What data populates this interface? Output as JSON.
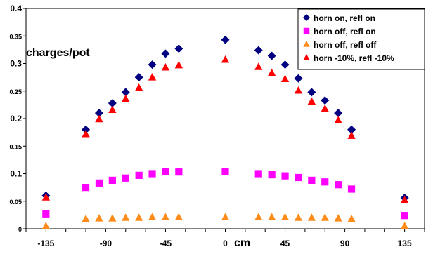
{
  "chart_data": {
    "type": "scatter",
    "title": "",
    "xlabel": "cm",
    "ylabel": "charges/pot",
    "xlim": [
      -150,
      150
    ],
    "ylim": [
      0,
      0.4
    ],
    "x_ticks": [
      -135,
      -90,
      -45,
      0,
      45,
      90,
      135
    ],
    "x_tick_labels": [
      "-135",
      "-90",
      "-45",
      "0",
      "45",
      "90",
      "135"
    ],
    "y_ticks": [
      0,
      0.05,
      0.1,
      0.15,
      0.2,
      0.25,
      0.3,
      0.35,
      0.4
    ],
    "y_tick_labels": [
      "0",
      "0.05",
      "0.1",
      "0.15",
      "0.2",
      "0.25",
      "0.3",
      "0.35",
      "0.4"
    ],
    "legend": {
      "position": "top-right"
    },
    "grid": false,
    "x": [
      -135,
      -105,
      -95,
      -85,
      -75,
      -65,
      -55,
      -45,
      -35,
      -25,
      0,
      25,
      35,
      45,
      55,
      65,
      75,
      85,
      95,
      105,
      135
    ],
    "series": [
      {
        "name": "horn on, refl on",
        "marker": "diamond",
        "color": "#000080",
        "values": [
          0.06,
          0.18,
          0.21,
          0.228,
          0.248,
          0.275,
          0.298,
          0.318,
          0.327,
          null,
          0.343,
          0.324,
          0.314,
          0.298,
          0.273,
          0.248,
          0.233,
          0.21,
          0.18,
          null,
          0.056
        ],
        "x": [
          -135,
          -105,
          -95,
          -85,
          -75,
          -65,
          -55,
          -45,
          -35,
          -25,
          0,
          25,
          35,
          45,
          55,
          65,
          75,
          85,
          95,
          105,
          135
        ]
      },
      {
        "name": "horn off, refl on",
        "marker": "square",
        "color": "#ff00ff",
        "values": [
          0.027,
          0.075,
          0.083,
          0.088,
          0.092,
          0.097,
          0.1,
          0.104,
          0.103,
          0.104,
          0.1,
          0.098,
          0.096,
          0.093,
          0.088,
          0.085,
          0.08,
          0.072,
          0.024
        ],
        "x": [
          -135,
          -105,
          -95,
          -85,
          -75,
          -65,
          -55,
          -45,
          -35,
          0,
          25,
          35,
          45,
          55,
          65,
          75,
          85,
          95,
          135
        ]
      },
      {
        "name": "horn off, refl off",
        "marker": "triangle",
        "color": "#ff8c1a",
        "values": [
          0.005,
          0.018,
          0.019,
          0.019,
          0.02,
          0.02,
          0.021,
          0.021,
          0.021,
          0.021,
          0.021,
          0.021,
          0.021,
          0.02,
          0.02,
          0.02,
          0.019,
          0.018,
          0.005
        ],
        "x": [
          -135,
          -105,
          -95,
          -85,
          -75,
          -65,
          -55,
          -45,
          -35,
          0,
          25,
          35,
          45,
          55,
          65,
          75,
          85,
          95,
          135
        ]
      },
      {
        "name": "horn -10%, refl -10%",
        "marker": "triangle",
        "color": "#ff0000",
        "values": [
          0.057,
          0.172,
          0.199,
          0.216,
          0.236,
          0.256,
          0.275,
          0.293,
          0.297,
          0.307,
          0.294,
          0.283,
          0.272,
          0.251,
          0.231,
          0.218,
          0.197,
          0.169,
          0.052
        ],
        "x": [
          -135,
          -105,
          -95,
          -85,
          -75,
          -65,
          -55,
          -45,
          -35,
          0,
          25,
          35,
          45,
          55,
          65,
          75,
          85,
          95,
          135
        ]
      }
    ]
  }
}
